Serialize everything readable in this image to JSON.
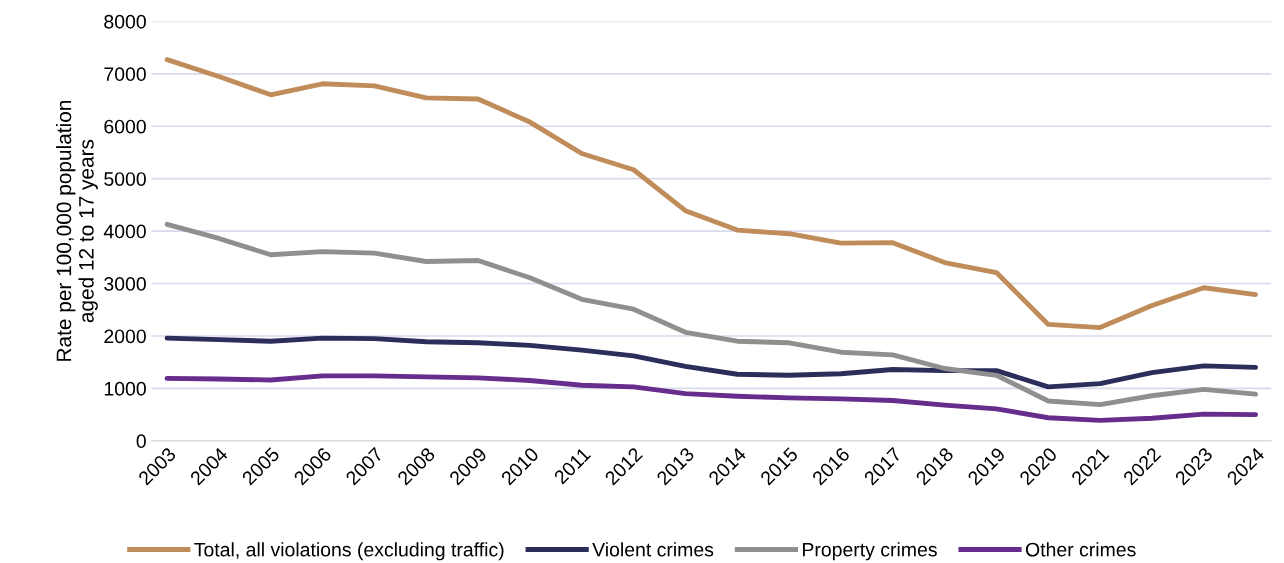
{
  "chart_data": {
    "type": "line",
    "ylabel": "Rate per 100,000 population\naged 12 to 17 years",
    "categories": [
      "2003",
      "2004",
      "2005",
      "2006",
      "2007",
      "2008",
      "2009",
      "2010",
      "2011",
      "2012",
      "2013",
      "2014",
      "2015",
      "2016",
      "2017",
      "2018",
      "2019",
      "2020",
      "2021",
      "2022",
      "2023",
      "2024"
    ],
    "series": [
      {
        "name": "Total, all violations (excluding traffic)",
        "color": "#c08c5a",
        "values": [
          7270,
          6950,
          6600,
          6810,
          6770,
          6540,
          6520,
          6080,
          5480,
          5170,
          4390,
          4020,
          3950,
          3770,
          3780,
          3400,
          3210,
          2220,
          2160,
          2580,
          2920,
          2790
        ]
      },
      {
        "name": "Violent crimes",
        "color": "#2b2d5b",
        "values": [
          1960,
          1930,
          1900,
          1960,
          1950,
          1890,
          1870,
          1820,
          1730,
          1620,
          1420,
          1270,
          1250,
          1280,
          1360,
          1340,
          1340,
          1030,
          1090,
          1300,
          1430,
          1400
        ]
      },
      {
        "name": "Property crimes",
        "color": "#8f8f8f",
        "values": [
          4130,
          3860,
          3550,
          3610,
          3580,
          3420,
          3440,
          3110,
          2700,
          2510,
          2070,
          1900,
          1870,
          1690,
          1640,
          1380,
          1250,
          760,
          690,
          860,
          980,
          890
        ]
      },
      {
        "name": "Other crimes",
        "color": "#662d8c",
        "values": [
          1190,
          1180,
          1160,
          1240,
          1240,
          1220,
          1200,
          1150,
          1060,
          1030,
          900,
          850,
          820,
          800,
          770,
          680,
          610,
          440,
          390,
          430,
          510,
          500
        ]
      }
    ],
    "ylim": [
      0,
      8000
    ],
    "yticks": [
      0,
      1000,
      2000,
      3000,
      4000,
      5000,
      6000,
      7000,
      8000
    ],
    "grid": "y",
    "legend": "bottom",
    "marker": "none",
    "line_style": "solid"
  }
}
